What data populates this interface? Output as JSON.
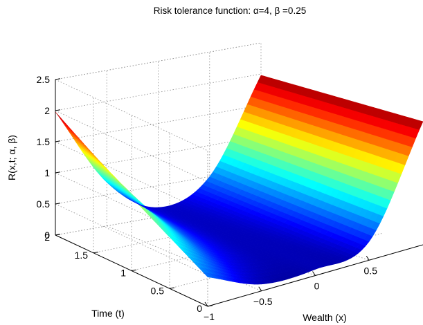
{
  "chart_data": {
    "type": "surface",
    "title": "Risk tolerance function:  α=4,  β =0.25",
    "xlabel": "Wealth (x)",
    "ylabel": "Time (t)",
    "zlabel": "R(x,t; α, β)",
    "alpha": 4,
    "beta": 0.25,
    "xlim": [
      -1,
      1
    ],
    "ylim": [
      0,
      2
    ],
    "zlim": [
      0,
      2.5
    ],
    "x_ticks": [
      -1,
      -0.5,
      0,
      0.5
    ],
    "x_tick_labels": [
      "−1",
      "−0.5",
      "0",
      "0.5"
    ],
    "y_ticks": [
      0,
      0.5,
      1,
      1.5,
      2
    ],
    "y_tick_labels": [
      "0",
      "0.5",
      "1",
      "1.5",
      "2"
    ],
    "z_ticks": [
      0,
      0.5,
      1,
      1.5,
      2,
      2.5
    ],
    "z_tick_labels": [
      "0",
      "0.5",
      "1",
      "1.5",
      "2",
      "2.5"
    ],
    "grid": true,
    "colormap": "jet",
    "surface_samples": {
      "x": [
        -1,
        -0.5,
        0,
        0.5,
        1
      ],
      "t": [
        0,
        1,
        2
      ],
      "R": [
        [
          0.47,
          0.11,
          0.1,
          0.3,
          1.98
        ],
        [
          1.18,
          0.4,
          0.12,
          0.4,
          1.98
        ],
        [
          1.98,
          0.7,
          0.15,
          0.5,
          1.98
        ]
      ]
    }
  }
}
